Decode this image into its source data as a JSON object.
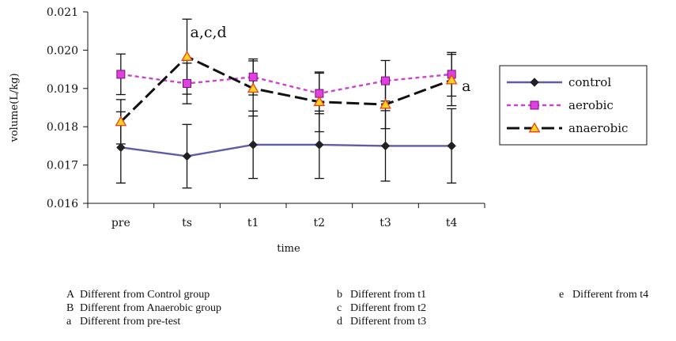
{
  "chart_data": {
    "type": "line",
    "title": "",
    "xlabel": "time",
    "ylabel": "volume(L/kg)",
    "categories": [
      "pre",
      "ts",
      "t1",
      "t2",
      "t3",
      "t4"
    ],
    "ylim": [
      0.016,
      0.021
    ],
    "yticks": [
      "0.016",
      "0.017",
      "0.018",
      "0.019",
      "0.020",
      "0.021"
    ],
    "grid": false,
    "legend_position": "right",
    "series": [
      {
        "name": "control",
        "values": [
          0.01746,
          0.01723,
          0.01753,
          0.01753,
          0.0175,
          0.0175
        ],
        "errors": [
          0.00093,
          0.00083,
          0.00088,
          0.00088,
          0.00092,
          0.00097
        ],
        "color": "#5b5ea6",
        "marker": "diamond",
        "line_style": "solid"
      },
      {
        "name": "aerobic",
        "values": [
          0.01937,
          0.01913,
          0.0193,
          0.01887,
          0.0192,
          0.01937
        ],
        "errors": [
          0.00053,
          0.00053,
          0.00047,
          0.00053,
          0.00053,
          0.00057
        ],
        "color": "#cc44cc",
        "marker": "square",
        "line_style": "dotted"
      },
      {
        "name": "anaerobic",
        "values": [
          0.01813,
          0.01983,
          0.019,
          0.01865,
          0.01858,
          0.01922
        ],
        "errors": [
          0.00058,
          0.00098,
          0.00072,
          0.00078,
          0.00063,
          0.00067
        ],
        "color": "#111111",
        "marker": "triangle",
        "line_style": "dashed"
      }
    ],
    "annotations": [
      {
        "text": "a,c,d",
        "category": "ts"
      },
      {
        "text": "a",
        "category": "t4"
      }
    ]
  },
  "marker_colors": {
    "control": "#222222",
    "aerobic_fill": "#e040e0",
    "aerobic_stroke": "#771177",
    "anaerobic_fill": "#ffd21f",
    "anaerobic_stroke": "#e8401a"
  },
  "footnotes": [
    {
      "key": "A",
      "text": "Different from Control group"
    },
    {
      "key": "B",
      "text": "Different from Anaerobic group"
    },
    {
      "key": "a",
      "text": "Different from pre-test"
    },
    {
      "key": "b",
      "text": "Different from t1"
    },
    {
      "key": "c",
      "text": "Different from t2"
    },
    {
      "key": "d",
      "text": "Different from t3"
    },
    {
      "key": "e",
      "text": "Different from t4"
    }
  ]
}
